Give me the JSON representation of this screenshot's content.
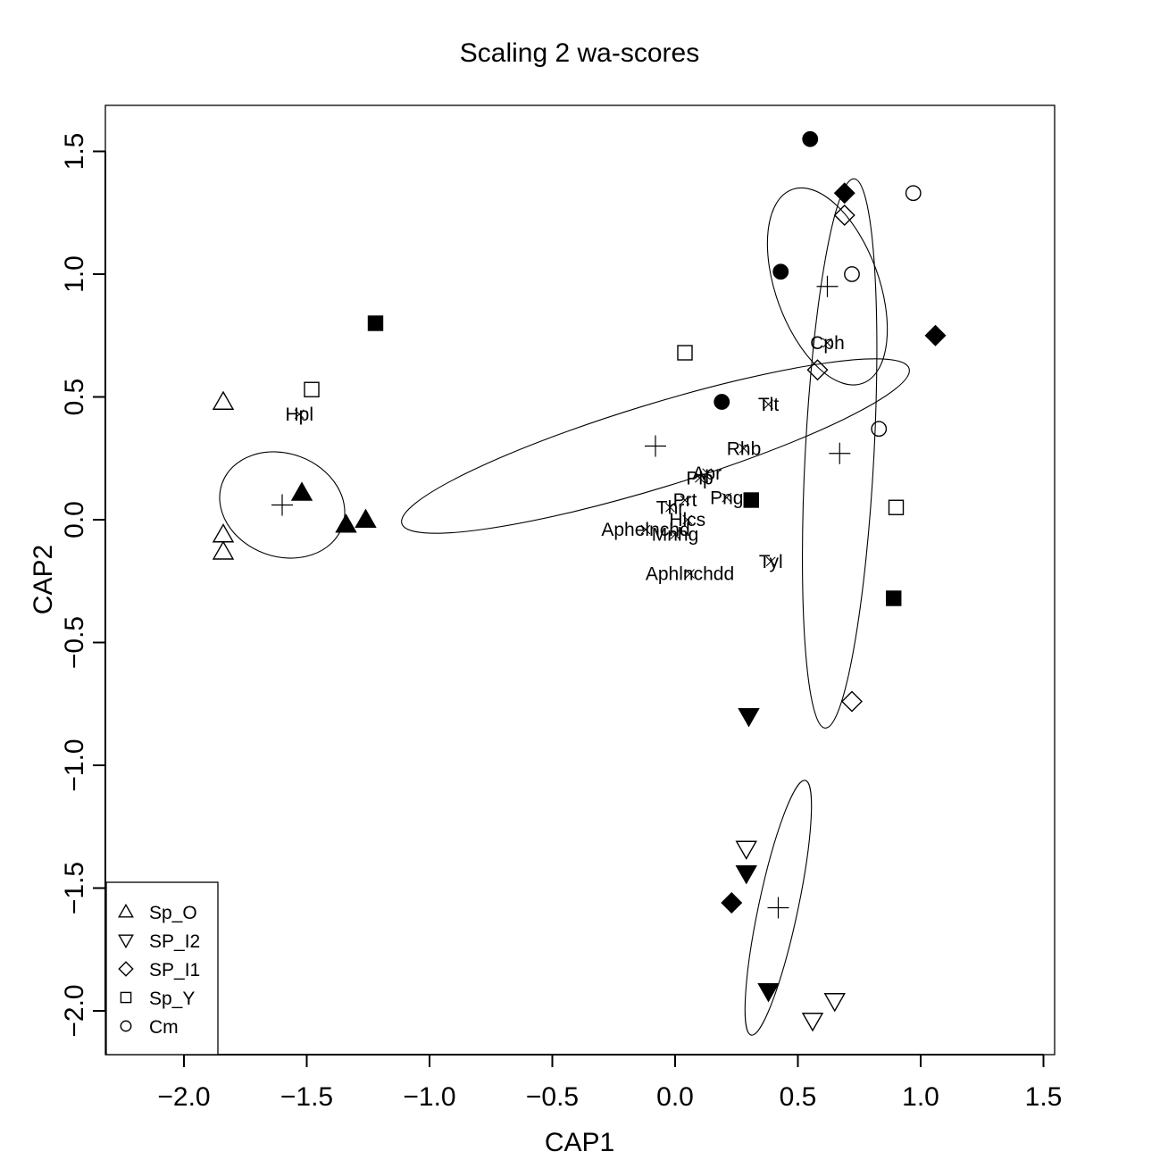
{
  "chart_data": {
    "type": "scatter",
    "title": "Scaling 2 wa-scores",
    "xlabel": "CAP1",
    "ylabel": "CAP2",
    "xlim": [
      -2.32,
      1.5
    ],
    "ylim": [
      -2.17,
      1.7
    ],
    "x_ticks": [
      -2.0,
      -1.5,
      -1.0,
      -0.5,
      0.0,
      0.5,
      1.0,
      1.5
    ],
    "x_tick_labels": [
      "−2.0",
      "−1.5",
      "−1.0",
      "−0.5",
      "0.0",
      "0.5",
      "1.0",
      "1.5"
    ],
    "y_ticks": [
      -2.0,
      -1.5,
      -1.0,
      -0.5,
      0.0,
      0.5,
      1.0,
      1.5
    ],
    "y_tick_labels": [
      "−2.0",
      "−1.5",
      "−1.0",
      "−0.5",
      "0.0",
      "0.5",
      "1.0",
      "1.5"
    ],
    "grid": false,
    "legend_position": "bottom-left",
    "legend": [
      {
        "label": "Sp_O",
        "shape": "triangle-up"
      },
      {
        "label": "SP_I2",
        "shape": "triangle-down"
      },
      {
        "label": "SP_I1",
        "shape": "diamond"
      },
      {
        "label": "Sp_Y",
        "shape": "square"
      },
      {
        "label": "Cm",
        "shape": "circle"
      }
    ],
    "series": [
      {
        "shape": "triangle-up",
        "filled": false,
        "points": [
          [
            -1.84,
            0.48
          ],
          [
            -1.84,
            -0.06
          ],
          [
            -1.84,
            -0.13
          ]
        ]
      },
      {
        "shape": "triangle-up",
        "filled": true,
        "points": [
          [
            -1.52,
            0.11
          ],
          [
            -1.34,
            -0.02
          ],
          [
            -1.26,
            0.0
          ]
        ]
      },
      {
        "shape": "triangle-down",
        "filled": false,
        "points": [
          [
            0.29,
            -1.34
          ],
          [
            0.56,
            -2.04
          ],
          [
            0.65,
            -1.96
          ]
        ]
      },
      {
        "shape": "triangle-down",
        "filled": true,
        "points": [
          [
            0.3,
            -0.8
          ],
          [
            0.29,
            -1.44
          ],
          [
            0.38,
            -1.92
          ]
        ]
      },
      {
        "shape": "diamond",
        "filled": false,
        "points": [
          [
            0.69,
            1.24
          ],
          [
            0.58,
            0.61
          ],
          [
            0.72,
            -0.74
          ]
        ]
      },
      {
        "shape": "diamond",
        "filled": true,
        "points": [
          [
            0.69,
            1.33
          ],
          [
            1.06,
            0.75
          ],
          [
            0.23,
            -1.56
          ]
        ]
      },
      {
        "shape": "square",
        "filled": false,
        "points": [
          [
            -1.48,
            0.53
          ],
          [
            0.04,
            0.68
          ],
          [
            0.9,
            0.05
          ]
        ]
      },
      {
        "shape": "square",
        "filled": true,
        "points": [
          [
            -1.22,
            0.8
          ],
          [
            0.31,
            0.08
          ],
          [
            0.89,
            -0.32
          ]
        ]
      },
      {
        "shape": "circle",
        "filled": false,
        "points": [
          [
            0.97,
            1.33
          ],
          [
            0.72,
            1.0
          ],
          [
            0.83,
            0.37
          ]
        ]
      },
      {
        "shape": "circle",
        "filled": true,
        "points": [
          [
            0.55,
            1.55
          ],
          [
            0.43,
            1.01
          ],
          [
            0.19,
            0.48
          ]
        ]
      }
    ],
    "centroids": [
      [
        -1.6,
        0.06
      ],
      [
        0.42,
        -1.58
      ],
      [
        0.62,
        0.95
      ],
      [
        -0.08,
        0.3
      ],
      [
        0.67,
        0.27
      ]
    ],
    "ellipses": [
      {
        "cx": -1.6,
        "cy": 0.06,
        "rx": 0.26,
        "ry": 0.21,
        "angle": 20
      },
      {
        "cx": 0.42,
        "cy": -1.58,
        "rx": 0.53,
        "ry": 0.08,
        "angle": -78
      },
      {
        "cx": 0.62,
        "cy": 0.95,
        "rx": 0.42,
        "ry": 0.21,
        "angle": 70
      },
      {
        "cx": -0.08,
        "cy": 0.3,
        "rx": 1.08,
        "ry": 0.17,
        "angle": -17
      },
      {
        "cx": 0.67,
        "cy": 0.27,
        "rx": 1.12,
        "ry": 0.14,
        "angle": -87
      }
    ],
    "species": [
      {
        "label": "Hpl",
        "x": -1.53,
        "y": 0.43
      },
      {
        "label": "Cph",
        "x": 0.62,
        "y": 0.72
      },
      {
        "label": "Tlt",
        "x": 0.38,
        "y": 0.47
      },
      {
        "label": "Rhb",
        "x": 0.28,
        "y": 0.29
      },
      {
        "label": "Apr",
        "x": 0.13,
        "y": 0.19
      },
      {
        "label": "Plp",
        "x": 0.1,
        "y": 0.17
      },
      {
        "label": "Png",
        "x": 0.21,
        "y": 0.09
      },
      {
        "label": "Tyl",
        "x": 0.39,
        "y": -0.17
      },
      {
        "label": "Prt",
        "x": 0.04,
        "y": 0.08
      },
      {
        "label": "Thr",
        "x": -0.02,
        "y": 0.05
      },
      {
        "label": "Hlcs",
        "x": 0.05,
        "y": 0.0
      },
      {
        "label": "Aphelnchd",
        "x": -0.12,
        "y": -0.04
      },
      {
        "label": "Mnhg",
        "x": 0.0,
        "y": -0.06
      },
      {
        "label": "Aphlnchdd",
        "x": 0.06,
        "y": -0.22
      }
    ]
  }
}
